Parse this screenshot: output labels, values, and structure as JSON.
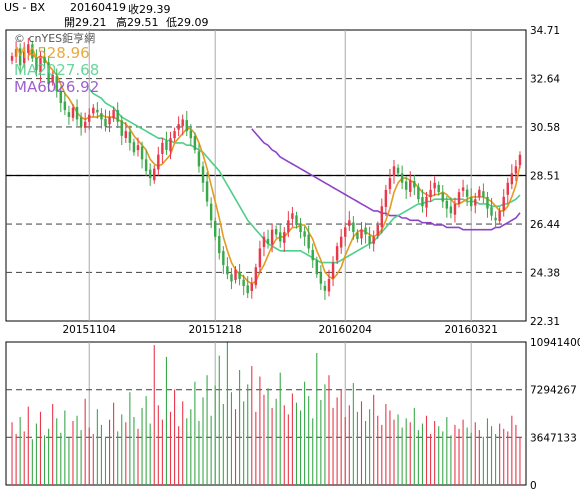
{
  "header": {
    "symbol": "US - BX",
    "date": "20160419",
    "close": "收29.39",
    "open": "開29.21",
    "high": "高29.51",
    "low": "低29.09"
  },
  "chart_data": [
    {
      "type": "candlestick",
      "watermark": "© cnYES鉅亨網",
      "legend": [
        {
          "name": "MA5",
          "value": "28.96",
          "color": "#e69a1f"
        },
        {
          "name": "MA20",
          "value": "27.68",
          "color": "#4fcf8a"
        },
        {
          "name": "MA60",
          "value": "26.92",
          "color": "#8e44c9"
        }
      ],
      "ylim": [
        22.31,
        34.71
      ],
      "y_ticks": [
        "34.71",
        "32.64",
        "30.58",
        "28.51",
        "26.44",
        "24.38",
        "22.31"
      ],
      "x_ticks": [
        {
          "label": "20151104",
          "index": 19
        },
        {
          "label": "20151218",
          "index": 50
        },
        {
          "label": "20160204",
          "index": 82
        },
        {
          "label": "20160321",
          "index": 113
        }
      ],
      "reference_line": 28.51,
      "colors": {
        "up": "#e8384a",
        "down": "#3aa84a"
      },
      "close": [
        33.6,
        33.9,
        33.2,
        33.8,
        34.1,
        33.5,
        33.0,
        33.6,
        33.3,
        32.4,
        32.8,
        32.1,
        31.6,
        31.3,
        31.0,
        31.4,
        30.9,
        30.6,
        30.8,
        31.1,
        31.4,
        31.2,
        30.9,
        30.6,
        31.0,
        31.3,
        30.8,
        30.2,
        30.4,
        29.9,
        29.5,
        29.8,
        29.2,
        28.7,
        28.4,
        28.8,
        29.4,
        29.9,
        29.6,
        30.1,
        30.4,
        30.7,
        30.9,
        30.4,
        30.1,
        29.6,
        28.9,
        28.2,
        27.4,
        26.6,
        25.9,
        25.2,
        24.7,
        24.3,
        24.0,
        24.5,
        24.1,
        23.8,
        23.5,
        23.9,
        24.6,
        25.4,
        25.9,
        25.6,
        26.2,
        26.0,
        25.7,
        26.1,
        26.6,
        26.9,
        26.4,
        26.1,
        25.9,
        25.4,
        24.9,
        24.3,
        23.9,
        23.6,
        24.1,
        24.8,
        25.5,
        25.9,
        26.3,
        26.6,
        26.1,
        25.8,
        26.2,
        26.0,
        25.6,
        25.9,
        26.4,
        27.2,
        27.9,
        28.4,
        28.9,
        28.6,
        28.2,
        27.9,
        28.3,
        28.0,
        27.5,
        27.2,
        27.6,
        27.9,
        28.2,
        27.8,
        27.4,
        27.1,
        26.9,
        27.3,
        27.8,
        28.0,
        27.6,
        27.2,
        27.5,
        27.9,
        27.6,
        27.1,
        26.8,
        26.6,
        27.0,
        27.6,
        28.2,
        28.6,
        28.9,
        29.39
      ],
      "ma5": [
        null,
        null,
        null,
        null,
        33.7,
        33.7,
        33.5,
        33.6,
        33.5,
        33.2,
        33.0,
        32.8,
        32.4,
        32.0,
        31.8,
        31.5,
        31.2,
        31.0,
        30.9,
        31.0,
        31.0,
        31.0,
        31.1,
        31.0,
        31.0,
        31.0,
        30.9,
        30.8,
        30.7,
        30.5,
        30.2,
        30.0,
        29.8,
        29.6,
        29.2,
        29.0,
        28.9,
        29.0,
        29.2,
        29.4,
        29.9,
        30.1,
        30.3,
        30.5,
        30.5,
        30.3,
        29.9,
        29.4,
        28.8,
        28.1,
        27.4,
        26.7,
        25.9,
        25.3,
        24.8,
        24.5,
        24.3,
        24.2,
        24.0,
        23.9,
        24.0,
        24.4,
        24.7,
        25.1,
        25.5,
        25.8,
        25.9,
        25.9,
        26.1,
        26.3,
        26.3,
        26.4,
        26.4,
        26.1,
        25.8,
        25.3,
        24.9,
        24.4,
        24.2,
        24.1,
        24.3,
        24.6,
        25.1,
        25.5,
        25.9,
        26.1,
        26.2,
        26.1,
        26.0,
        25.9,
        26.0,
        26.2,
        26.6,
        27.1,
        27.8,
        28.2,
        28.4,
        28.4,
        28.3,
        28.2,
        28.0,
        27.8,
        27.7,
        27.6,
        27.7,
        27.7,
        27.8,
        27.7,
        27.5,
        27.3,
        27.3,
        27.4,
        27.5,
        27.6,
        27.6,
        27.6,
        27.6,
        27.5,
        27.4,
        27.2,
        27.0,
        27.0,
        27.2,
        27.6,
        28.1,
        28.96
      ],
      "ma20": [
        null,
        null,
        null,
        null,
        null,
        null,
        null,
        null,
        null,
        null,
        null,
        null,
        null,
        null,
        null,
        null,
        null,
        null,
        null,
        32.2,
        32.0,
        31.9,
        31.8,
        31.6,
        31.5,
        31.4,
        31.2,
        31.0,
        30.9,
        30.8,
        30.7,
        30.6,
        30.5,
        30.4,
        30.3,
        30.2,
        30.1,
        30.1,
        30.0,
        30.0,
        29.9,
        29.9,
        29.9,
        29.8,
        29.8,
        29.7,
        29.6,
        29.5,
        29.3,
        29.1,
        28.9,
        28.7,
        28.4,
        28.1,
        27.8,
        27.5,
        27.2,
        26.9,
        26.6,
        26.4,
        26.2,
        26.0,
        25.8,
        25.6,
        25.5,
        25.4,
        25.3,
        25.3,
        25.3,
        25.3,
        25.3,
        25.3,
        25.2,
        25.1,
        25.0,
        24.9,
        24.8,
        24.8,
        24.8,
        24.8,
        24.8,
        24.9,
        25.0,
        25.1,
        25.2,
        25.3,
        25.4,
        25.5,
        25.6,
        25.7,
        25.9,
        26.1,
        26.3,
        26.5,
        26.7,
        26.8,
        26.9,
        27.0,
        27.1,
        27.2,
        27.3,
        27.3,
        27.4,
        27.4,
        27.5,
        27.5,
        27.5,
        27.5,
        27.5,
        27.5,
        27.5,
        27.5,
        27.4,
        27.4,
        27.4,
        27.3,
        27.3,
        27.3,
        27.2,
        27.2,
        27.2,
        27.3,
        27.3,
        27.4,
        27.5,
        27.68
      ],
      "ma60": [
        null,
        null,
        null,
        null,
        null,
        null,
        null,
        null,
        null,
        null,
        null,
        null,
        null,
        null,
        null,
        null,
        null,
        null,
        null,
        null,
        null,
        null,
        null,
        null,
        null,
        null,
        null,
        null,
        null,
        null,
        null,
        null,
        null,
        null,
        null,
        null,
        null,
        null,
        null,
        null,
        null,
        null,
        null,
        null,
        null,
        null,
        null,
        null,
        null,
        null,
        null,
        null,
        null,
        null,
        null,
        null,
        null,
        null,
        null,
        30.5,
        30.3,
        30.1,
        29.9,
        29.8,
        29.6,
        29.5,
        29.3,
        29.2,
        29.1,
        29.0,
        28.9,
        28.8,
        28.7,
        28.6,
        28.5,
        28.4,
        28.3,
        28.2,
        28.1,
        28.0,
        27.9,
        27.8,
        27.7,
        27.6,
        27.5,
        27.4,
        27.3,
        27.2,
        27.1,
        27.0,
        27.0,
        26.9,
        26.9,
        26.8,
        26.8,
        26.8,
        26.7,
        26.7,
        26.6,
        26.6,
        26.6,
        26.5,
        26.5,
        26.5,
        26.4,
        26.4,
        26.4,
        26.3,
        26.3,
        26.3,
        26.3,
        26.2,
        26.2,
        26.2,
        26.2,
        26.2,
        26.2,
        26.2,
        26.2,
        26.3,
        26.3,
        26.4,
        26.5,
        26.6,
        26.7,
        26.92
      ]
    },
    {
      "type": "bar",
      "ylim": [
        0,
        10941400
      ],
      "y_ticks": [
        "10941400",
        "7294267",
        "3647133",
        "0"
      ],
      "values": [
        4800000,
        3900000,
        5200000,
        4100000,
        6000000,
        3500000,
        4700000,
        5600000,
        3800000,
        4300000,
        6200000,
        5100000,
        4000000,
        5700000,
        3600000,
        4900000,
        5300000,
        4200000,
        6600000,
        4400000,
        3900000,
        5800000,
        4600000,
        3700000,
        5000000,
        6300000,
        4100000,
        5400000,
        4800000,
        7100000,
        5200000,
        4300000,
        5900000,
        6800000,
        4700000,
        10700000,
        6100000,
        5000000,
        9800000,
        5600000,
        7300000,
        4500000,
        6400000,
        5100000,
        5800000,
        7900000,
        4900000,
        6700000,
        8400000,
        5300000,
        7600000,
        9900000,
        6200000,
        10900000,
        7100000,
        5800000,
        8800000,
        6400000,
        7700000,
        9100000,
        5600000,
        8300000,
        6900000,
        7400000,
        5900000,
        6600000,
        8600000,
        6100000,
        5400000,
        7000000,
        6300000,
        5700000,
        7900000,
        6800000,
        5100000,
        10100000,
        6500000,
        7700000,
        8400000,
        5900000,
        6700000,
        7300000,
        5200000,
        6100000,
        7800000,
        5600000,
        6400000,
        4900000,
        5800000,
        6900000,
        5300000,
        4600000,
        6200000,
        5700000,
        5000000,
        5400000,
        4400000,
        5100000,
        4800000,
        5900000,
        4200000,
        4700000,
        5300000,
        3900000,
        4900000,
        4500000,
        4100000,
        5200000,
        3800000,
        4600000,
        4300000,
        5000000,
        4400000,
        4000000,
        4800000,
        4200000,
        3700000,
        5100000,
        4500000,
        3900000,
        4700000,
        4300000,
        4100000,
        5300000,
        4600000,
        3600000
      ]
    }
  ]
}
